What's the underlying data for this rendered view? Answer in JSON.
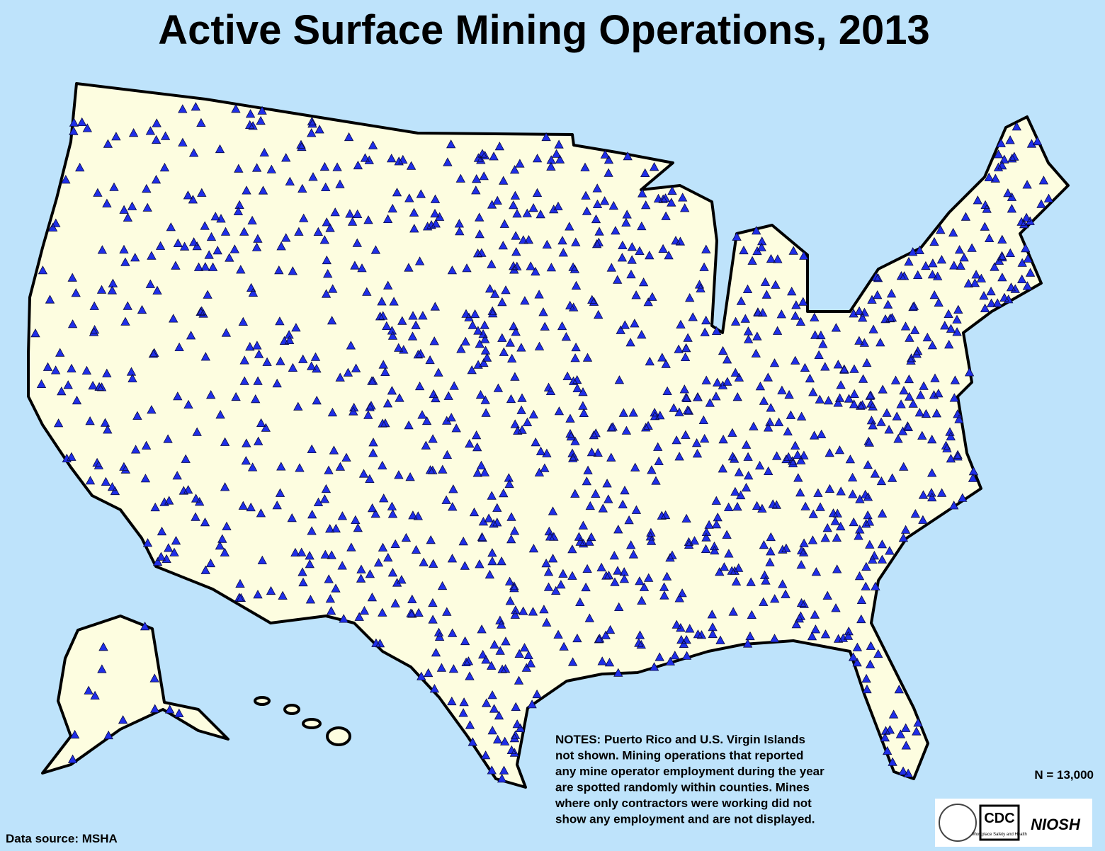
{
  "title": "Active Surface Mining Operations, 2013",
  "notes": [
    "NOTES: Puerto Rico and U.S. Virgin Islands",
    "not shown. Mining operations that reported",
    "any mine operator employment during the year",
    "are spotted randomly within counties. Mines",
    "where only contractors were working did not",
    "show any employment and are not displayed."
  ],
  "count_label": "N = 13,000",
  "source": "Data source: MSHA",
  "logo": {
    "cdc": "CDC",
    "workplace": "Workplace Safety and Health",
    "niosh": "NIOSH"
  }
}
